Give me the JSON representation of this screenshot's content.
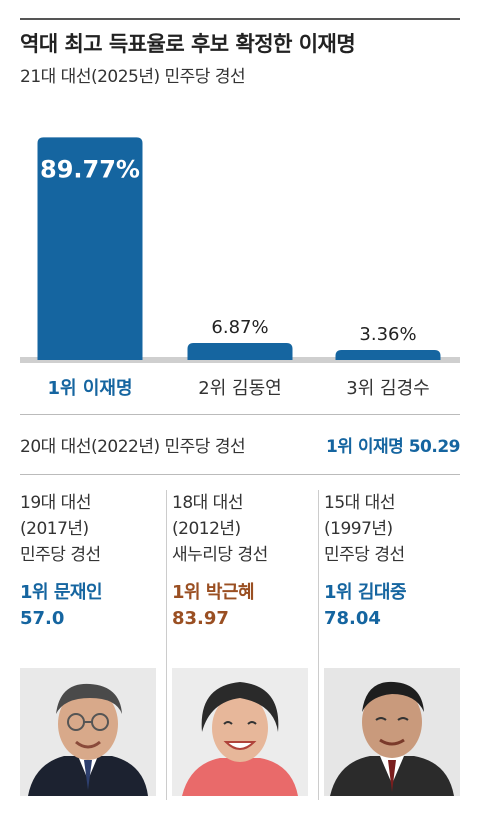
{
  "header": {
    "title": "역대 최고 득표율로 후보 확정한 이재명",
    "subtitle": "21대 대선(2025년) 민주당 경선"
  },
  "colors": {
    "bar": "#1565a0",
    "accent_blue": "#1565a0",
    "accent_brown": "#9a4f22",
    "baseline": "#cfcfcf"
  },
  "chart_data": {
    "type": "bar",
    "categories": [
      "1위 이재명",
      "2위 김동연",
      "3위 김경수"
    ],
    "values": [
      89.77,
      6.87,
      3.36
    ],
    "value_labels": [
      "89.77%",
      "6.87%",
      "3.36%"
    ],
    "unit": "%",
    "ylim": [
      0,
      100
    ],
    "highlight_index": 0,
    "grid": false
  },
  "prev_2022": {
    "label": "20대 대선(2022년) 민주당 경선",
    "winner": "1위 이재명 50.29"
  },
  "past_elections": [
    {
      "lines": [
        "19대 대선",
        "(2017년)",
        "민주당 경선"
      ],
      "winner": "1위 문재인",
      "pct": "57.0",
      "color": "#1565a0",
      "portrait_icon": "portrait-moon-jae-in"
    },
    {
      "lines": [
        "18대 대선",
        "(2012년)",
        "새누리당 경선"
      ],
      "winner": "1위 박근혜",
      "pct": "83.97",
      "color": "#9a4f22",
      "portrait_icon": "portrait-park-geun-hye"
    },
    {
      "lines": [
        "15대 대선",
        "(1997년)",
        "민주당 경선"
      ],
      "winner": "1위 김대중",
      "pct": "78.04",
      "color": "#1565a0",
      "portrait_icon": "portrait-kim-dae-jung"
    }
  ]
}
